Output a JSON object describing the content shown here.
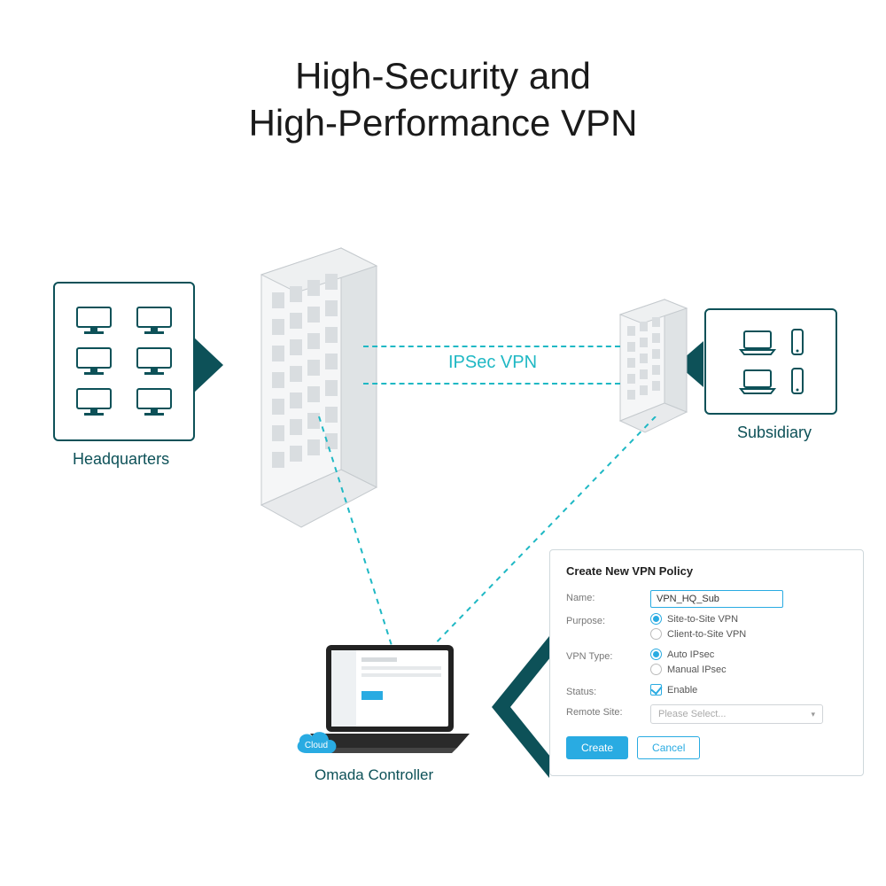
{
  "title_line1": "High-Security and",
  "title_line2": "High-Performance VPN",
  "colors": {
    "dark_teal": "#0d5158",
    "cyan": "#1fb8c4",
    "blue": "#29abe2",
    "border_gray": "#cfd8dc",
    "icon_gray": "#7a8a8f",
    "bldg_light": "#f2f4f5",
    "bldg_mid": "#d9dde0",
    "bldg_dark": "#c5cace"
  },
  "hq": {
    "label": "Headquarters",
    "monitor_count": 6
  },
  "sub": {
    "label": "Subsidiary"
  },
  "tunnel": {
    "label": "IPSec VPN"
  },
  "controller": {
    "label": "Omada Controller",
    "badge": "Cloud"
  },
  "form": {
    "title": "Create New VPN Policy",
    "fields": {
      "name_label": "Name:",
      "name_value": "VPN_HQ_Sub",
      "purpose_label": "Purpose:",
      "purpose_opts": [
        "Site-to-Site VPN",
        "Client-to-Site VPN"
      ],
      "purpose_selected": 0,
      "vpntype_label": "VPN Type:",
      "vpntype_opts": [
        "Auto IPsec",
        "Manual IPsec"
      ],
      "vpntype_selected": 0,
      "status_label": "Status:",
      "status_check": "Enable",
      "status_checked": true,
      "remote_label": "Remote Site:",
      "remote_placeholder": "Please Select..."
    },
    "buttons": {
      "create": "Create",
      "cancel": "Cancel"
    }
  },
  "diagram": {
    "type": "network-infographic",
    "nodes": [
      "headquarters",
      "hq_building",
      "subsidiary",
      "sub_building",
      "omada_controller",
      "vpn_form"
    ],
    "edges": [
      {
        "from": "hq_building",
        "to": "sub_building",
        "label": "IPSec VPN",
        "style": "dashed",
        "color": "#1fb8c4"
      },
      {
        "from": "hq_building",
        "to": "omada_controller",
        "style": "dashed",
        "color": "#1fb8c4"
      },
      {
        "from": "sub_building",
        "to": "omada_controller",
        "style": "dashed",
        "color": "#1fb8c4"
      },
      {
        "from": "omada_controller",
        "to": "vpn_form",
        "style": "solid-arrow",
        "color": "#0d5158"
      }
    ]
  }
}
